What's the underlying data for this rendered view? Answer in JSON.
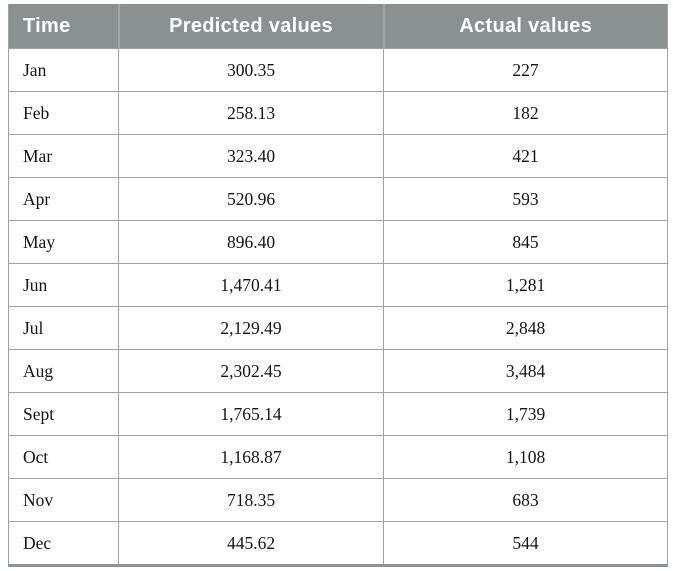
{
  "colors": {
    "header_bg": "#8b9091",
    "header_text": "#ffffff",
    "grid_line": "#9fa2a2",
    "bottom_border": "#8f9394",
    "body_text": "#141414"
  },
  "table": {
    "columns": [
      {
        "label": "Time"
      },
      {
        "label": "Predicted values"
      },
      {
        "label": "Actual values"
      }
    ],
    "rows": [
      {
        "time": "Jan",
        "predicted": "300.35",
        "actual": "227"
      },
      {
        "time": "Feb",
        "predicted": "258.13",
        "actual": "182"
      },
      {
        "time": "Mar",
        "predicted": "323.40",
        "actual": "421"
      },
      {
        "time": "Apr",
        "predicted": "520.96",
        "actual": "593"
      },
      {
        "time": "May",
        "predicted": "896.40",
        "actual": "845"
      },
      {
        "time": "Jun",
        "predicted": "1,470.41",
        "actual": "1,281"
      },
      {
        "time": "Jul",
        "predicted": "2,129.49",
        "actual": "2,848"
      },
      {
        "time": "Aug",
        "predicted": "2,302.45",
        "actual": "3,484"
      },
      {
        "time": "Sept",
        "predicted": "1,765.14",
        "actual": "1,739"
      },
      {
        "time": "Oct",
        "predicted": "1,168.87",
        "actual": "1,108"
      },
      {
        "time": "Nov",
        "predicted": "718.35",
        "actual": "683"
      },
      {
        "time": "Dec",
        "predicted": "445.62",
        "actual": "544"
      }
    ]
  },
  "chart_data": {
    "type": "table",
    "title": "",
    "categories": [
      "Jan",
      "Feb",
      "Mar",
      "Apr",
      "May",
      "Jun",
      "Jul",
      "Aug",
      "Sept",
      "Oct",
      "Nov",
      "Dec"
    ],
    "series": [
      {
        "name": "Predicted values",
        "values": [
          300.35,
          258.13,
          323.4,
          520.96,
          896.4,
          1470.41,
          2129.49,
          2302.45,
          1765.14,
          1168.87,
          718.35,
          445.62
        ]
      },
      {
        "name": "Actual values",
        "values": [
          227,
          182,
          421,
          593,
          845,
          1281,
          2848,
          3484,
          1739,
          1108,
          683,
          544
        ]
      }
    ]
  }
}
